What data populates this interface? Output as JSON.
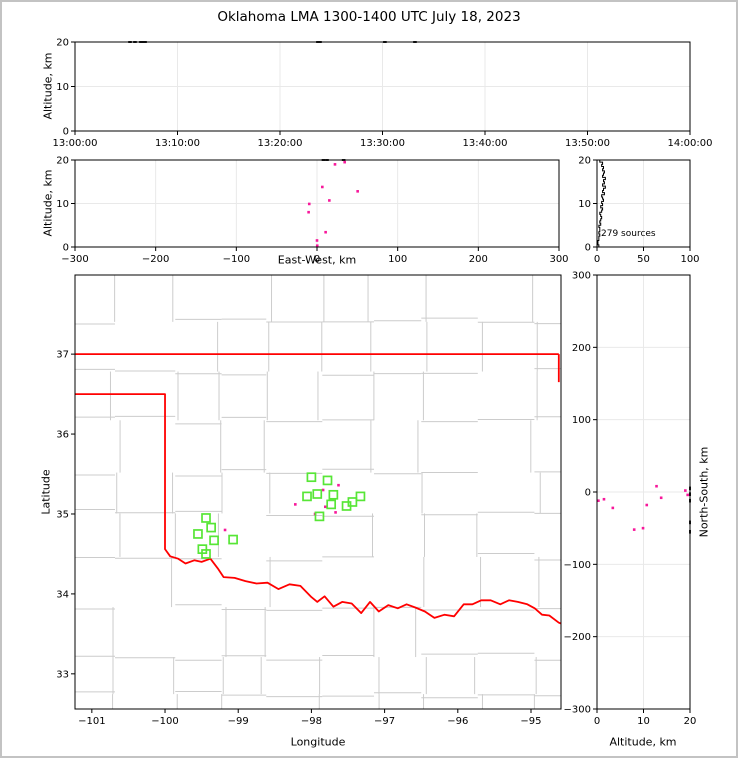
{
  "title": "Oklahoma LMA 1300-1400 UTC July 18, 2023",
  "colors": {
    "source": "#f7189b",
    "source_clipped": "#1a1a1a",
    "station": "#57e636",
    "state_border": "#ff0000",
    "county": "#cccccc",
    "grid": "#e9e9e9",
    "axis": "#000000",
    "histogram": "#000000"
  },
  "chart_data": [
    {
      "id": "time_altitude",
      "type": "scatter",
      "xlabel": "",
      "ylabel": "Altitude, km",
      "xtick_labels": [
        "13:00:00",
        "13:10:00",
        "13:20:00",
        "13:30:00",
        "13:40:00",
        "13:50:00",
        "14:00:00"
      ],
      "yticks": [
        0,
        10,
        20
      ],
      "ylim": [
        0,
        20
      ],
      "xlim_seconds": [
        0,
        3600
      ],
      "points": [
        {
          "t_s": 322,
          "alt_km": 20,
          "clipped": true
        },
        {
          "t_s": 351,
          "alt_km": 20,
          "clipped": true
        },
        {
          "t_s": 386,
          "alt_km": 20,
          "clipped": true
        },
        {
          "t_s": 398,
          "alt_km": 20,
          "clipped": true
        },
        {
          "t_s": 410,
          "alt_km": 20,
          "clipped": true
        },
        {
          "t_s": 1422,
          "alt_km": 20,
          "clipped": true
        },
        {
          "t_s": 1434,
          "alt_km": 20,
          "clipped": true
        },
        {
          "t_s": 1814,
          "alt_km": 20,
          "clipped": true
        },
        {
          "t_s": 1990,
          "alt_km": 20,
          "clipped": true
        }
      ]
    },
    {
      "id": "ew_altitude",
      "type": "scatter",
      "xlabel": "East-West, km",
      "ylabel": "Altitude, km",
      "xticks": [
        -300,
        -200,
        -100,
        0,
        100,
        200,
        300
      ],
      "yticks": [
        0,
        10,
        20
      ],
      "xlim": [
        -300,
        300
      ],
      "ylim": [
        0,
        20
      ],
      "points": [
        {
          "x_km": 8,
          "alt_km": 20,
          "clipped": true
        },
        {
          "x_km": 12.4,
          "alt_km": 20,
          "clipped": true
        },
        {
          "x_km": 33,
          "alt_km": 20,
          "clipped": true
        },
        {
          "x_km": 22.3,
          "alt_km": 19.0
        },
        {
          "x_km": 34.3,
          "alt_km": 19.5
        },
        {
          "x_km": 6.6,
          "alt_km": 13.8
        },
        {
          "x_km": 50.4,
          "alt_km": 12.8
        },
        {
          "x_km": 15.3,
          "alt_km": 10.7
        },
        {
          "x_km": -9.6,
          "alt_km": 9.9
        },
        {
          "x_km": -10.4,
          "alt_km": 8.0
        },
        {
          "x_km": 10.7,
          "alt_km": 3.4
        },
        {
          "x_km": 0,
          "alt_km": 1.5
        },
        {
          "x_km": 0.3,
          "alt_km": 0.3
        }
      ]
    },
    {
      "id": "altitude_histogram",
      "type": "line",
      "annotation": "279 sources",
      "xticks": [
        0,
        50,
        100
      ],
      "yticks": [
        0,
        10,
        20
      ],
      "xlim": [
        0,
        100
      ],
      "ylim": [
        0,
        20
      ],
      "bin_km": 0.5,
      "counts": [
        2,
        1,
        1,
        2,
        2,
        3,
        2,
        3,
        3,
        2,
        4,
        3,
        4,
        5,
        4,
        3,
        5,
        6,
        4,
        6,
        5,
        7,
        6,
        5,
        8,
        6,
        7,
        9,
        6,
        8,
        7,
        9,
        6,
        7,
        8,
        6,
        7,
        5,
        6,
        3
      ]
    },
    {
      "id": "plan_view_map",
      "type": "scatter",
      "xlabel": "Longitude",
      "ylabel": "Latitude",
      "xticks": [
        -101,
        -100,
        -99,
        -98,
        -97,
        -96,
        -95
      ],
      "yticks": [
        33,
        34,
        35,
        36,
        37
      ],
      "xlim": [
        -101.23,
        -94.59
      ],
      "ylim": [
        32.56,
        37.99
      ],
      "stations": [
        [
          -98.0,
          35.46
        ],
        [
          -97.78,
          35.42
        ],
        [
          -98.06,
          35.22
        ],
        [
          -97.92,
          35.25
        ],
        [
          -97.7,
          35.24
        ],
        [
          -97.33,
          35.22
        ],
        [
          -97.44,
          35.15
        ],
        [
          -97.73,
          35.12
        ],
        [
          -97.52,
          35.1
        ],
        [
          -97.89,
          34.97
        ],
        [
          -99.44,
          34.95
        ],
        [
          -99.37,
          34.83
        ],
        [
          -99.55,
          34.75
        ],
        [
          -99.33,
          34.67
        ],
        [
          -99.07,
          34.68
        ],
        [
          -99.49,
          34.56
        ],
        [
          -99.44,
          34.5
        ]
      ],
      "sources": [
        [
          -97.84,
          35.3
        ],
        [
          -97.63,
          35.36
        ],
        [
          -98.22,
          35.12
        ],
        [
          -97.81,
          35.09
        ],
        [
          -97.67,
          35.02
        ],
        [
          -97.95,
          35.0
        ],
        [
          -99.18,
          34.8
        ]
      ],
      "state_border": {
        "north_lat": 37,
        "east_lon": -94.62,
        "panhandle_lat": 36.5,
        "panhandle_east_lon": -100,
        "red_river": [
          [
            -100,
            34.56
          ],
          [
            -99.93,
            34.47
          ],
          [
            -99.82,
            34.44
          ],
          [
            -99.72,
            34.38
          ],
          [
            -99.6,
            34.42
          ],
          [
            -99.5,
            34.4
          ],
          [
            -99.38,
            34.44
          ],
          [
            -99.28,
            34.32
          ],
          [
            -99.2,
            34.21
          ],
          [
            -99.05,
            34.2
          ],
          [
            -98.9,
            34.16
          ],
          [
            -98.75,
            34.13
          ],
          [
            -98.6,
            34.14
          ],
          [
            -98.45,
            34.06
          ],
          [
            -98.3,
            34.12
          ],
          [
            -98.15,
            34.1
          ],
          [
            -98.0,
            33.96
          ],
          [
            -97.92,
            33.9
          ],
          [
            -97.82,
            33.97
          ],
          [
            -97.7,
            33.84
          ],
          [
            -97.58,
            33.9
          ],
          [
            -97.45,
            33.88
          ],
          [
            -97.32,
            33.76
          ],
          [
            -97.2,
            33.9
          ],
          [
            -97.08,
            33.78
          ],
          [
            -96.95,
            33.86
          ],
          [
            -96.82,
            33.82
          ],
          [
            -96.7,
            33.87
          ],
          [
            -96.58,
            33.83
          ],
          [
            -96.45,
            33.78
          ],
          [
            -96.32,
            33.7
          ],
          [
            -96.18,
            33.74
          ],
          [
            -96.05,
            33.72
          ],
          [
            -95.92,
            33.87
          ],
          [
            -95.8,
            33.87
          ],
          [
            -95.68,
            33.92
          ],
          [
            -95.55,
            33.92
          ],
          [
            -95.42,
            33.87
          ],
          [
            -95.3,
            33.92
          ],
          [
            -95.18,
            33.9
          ],
          [
            -95.05,
            33.87
          ],
          [
            -94.95,
            33.82
          ],
          [
            -94.85,
            33.74
          ],
          [
            -94.75,
            33.73
          ],
          [
            -94.62,
            33.64
          ],
          [
            -94.59,
            33.63
          ]
        ]
      }
    },
    {
      "id": "ns_altitude",
      "type": "scatter",
      "xlabel": "Altitude, km",
      "ylabel": "North-South, km",
      "xticks": [
        0,
        10,
        20
      ],
      "yticks": [
        300,
        200,
        100,
        0,
        -100,
        -200,
        -300
      ],
      "xlim": [
        0,
        20
      ],
      "ylim": [
        -300,
        300
      ],
      "points": [
        {
          "alt_km": 20,
          "ns_km": 5,
          "clipped": true
        },
        {
          "alt_km": 20,
          "ns_km": -3,
          "clipped": true
        },
        {
          "alt_km": 20,
          "ns_km": -12,
          "clipped": true
        },
        {
          "alt_km": 20,
          "ns_km": -42,
          "clipped": true
        },
        {
          "alt_km": 20,
          "ns_km": -55,
          "clipped": true
        },
        {
          "alt_km": 19.0,
          "ns_km": 2
        },
        {
          "alt_km": 19.5,
          "ns_km": -4
        },
        {
          "alt_km": 13.8,
          "ns_km": -8
        },
        {
          "alt_km": 12.8,
          "ns_km": 8
        },
        {
          "alt_km": 10.7,
          "ns_km": -18
        },
        {
          "alt_km": 9.9,
          "ns_km": -50
        },
        {
          "alt_km": 8.0,
          "ns_km": -52
        },
        {
          "alt_km": 3.4,
          "ns_km": -22
        },
        {
          "alt_km": 1.5,
          "ns_km": -10
        },
        {
          "alt_km": 0.3,
          "ns_km": -12
        }
      ]
    }
  ]
}
